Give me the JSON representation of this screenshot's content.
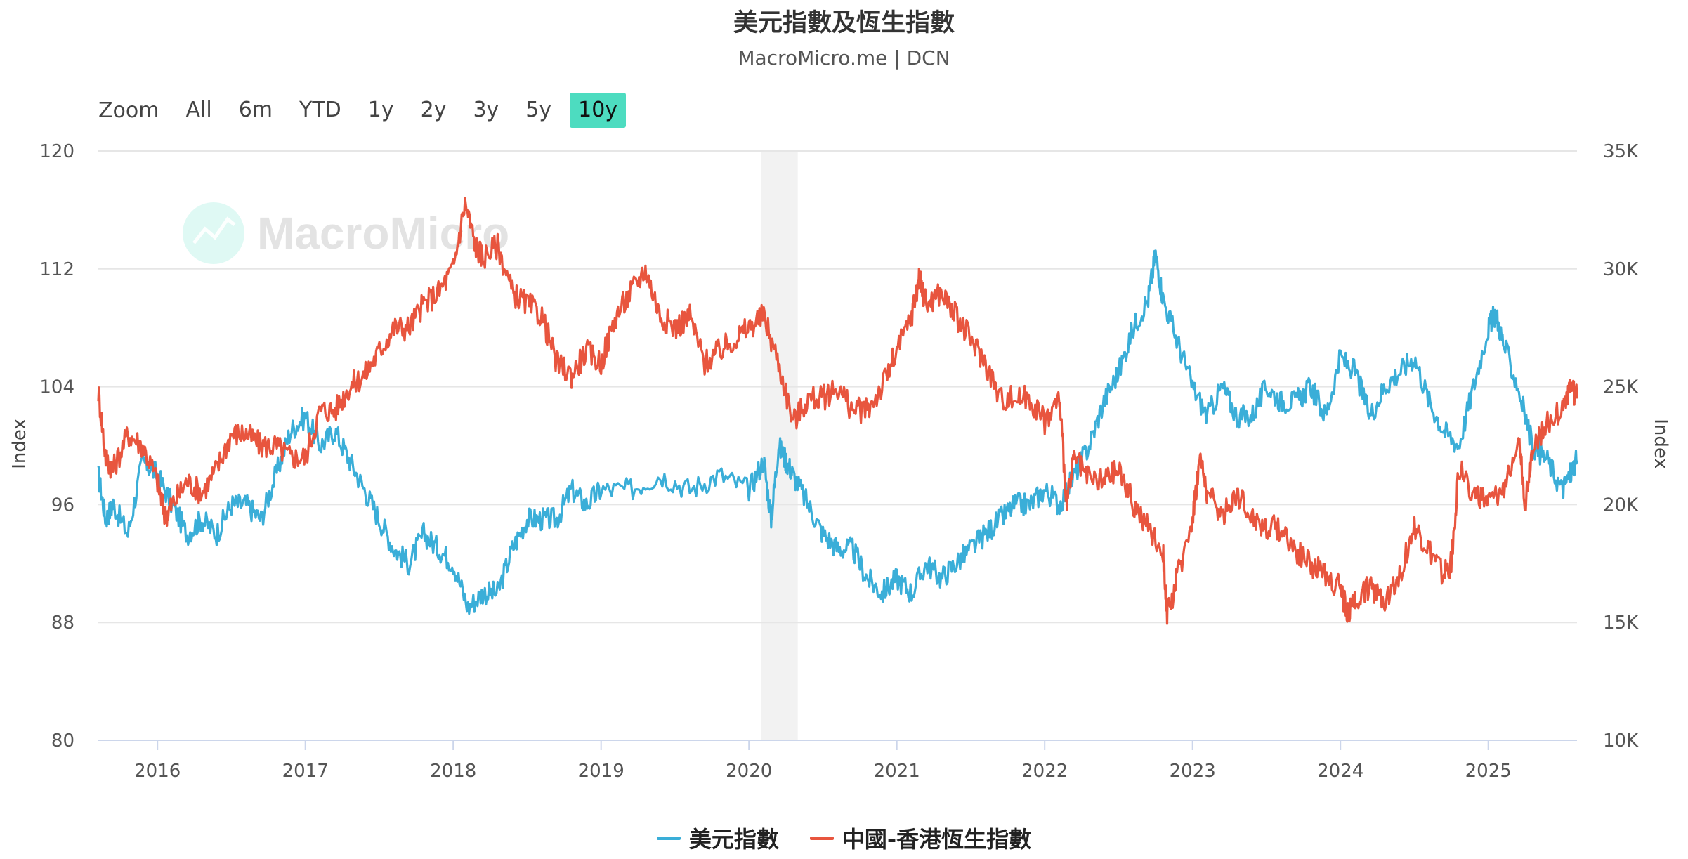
{
  "title": "美元指數及恆生指數",
  "subtitle": "MacroMicro.me | DCN",
  "watermark": "MacroMicro",
  "range_selector": {
    "zoom_label": "Zoom",
    "buttons": [
      "All",
      "6m",
      "YTD",
      "1y",
      "2y",
      "3y",
      "5y",
      "10y"
    ],
    "active": "10y"
  },
  "colors": {
    "usd": "#3aaed8",
    "hsi": "#e8553e",
    "grid": "#e6e6e6",
    "shade": "#f2f2f2",
    "active_button": "#4ddcc0",
    "watermark": "#4ddcc0"
  },
  "chart_data": {
    "type": "line",
    "x_range": [
      2015.6,
      2025.6
    ],
    "xticks": [
      2016,
      2017,
      2018,
      2019,
      2020,
      2021,
      2022,
      2023,
      2024,
      2025
    ],
    "xtick_labels": [
      "2016",
      "2017",
      "2018",
      "2019",
      "2020",
      "2021",
      "2022",
      "2023",
      "2024",
      "2025"
    ],
    "shaded_period": [
      2020.08,
      2020.33
    ],
    "y_left": {
      "label": "Index",
      "range": [
        80,
        120
      ],
      "ticks": [
        80,
        88,
        96,
        104,
        112,
        120
      ],
      "tick_labels": [
        "80",
        "88",
        "96",
        "104",
        "112",
        "120"
      ]
    },
    "y_right": {
      "label": "Index",
      "range": [
        10000,
        35000
      ],
      "ticks": [
        10000,
        15000,
        20000,
        25000,
        30000,
        35000
      ],
      "tick_labels": [
        "10K",
        "15K",
        "20K",
        "25K",
        "30K",
        "35K"
      ]
    },
    "series": [
      {
        "name": "美元指數",
        "axis": "left",
        "x": [
          2015.6,
          2015.65,
          2015.7,
          2015.8,
          2015.9,
          2016.0,
          2016.1,
          2016.2,
          2016.3,
          2016.4,
          2016.5,
          2016.6,
          2016.7,
          2016.8,
          2016.9,
          2017.0,
          2017.1,
          2017.2,
          2017.3,
          2017.4,
          2017.5,
          2017.6,
          2017.7,
          2017.8,
          2017.9,
          2018.0,
          2018.1,
          2018.2,
          2018.3,
          2018.4,
          2018.5,
          2018.6,
          2018.7,
          2018.8,
          2018.9,
          2019.0,
          2019.2,
          2019.4,
          2019.6,
          2019.8,
          2020.0,
          2020.1,
          2020.15,
          2020.2,
          2020.25,
          2020.3,
          2020.4,
          2020.5,
          2020.6,
          2020.7,
          2020.8,
          2020.9,
          2021.0,
          2021.1,
          2021.2,
          2021.3,
          2021.4,
          2021.5,
          2021.6,
          2021.7,
          2021.8,
          2021.9,
          2022.0,
          2022.1,
          2022.2,
          2022.3,
          2022.4,
          2022.5,
          2022.6,
          2022.7,
          2022.75,
          2022.8,
          2022.9,
          2023.0,
          2023.1,
          2023.2,
          2023.3,
          2023.4,
          2023.5,
          2023.6,
          2023.7,
          2023.8,
          2023.9,
          2024.0,
          2024.1,
          2024.2,
          2024.3,
          2024.4,
          2024.5,
          2024.6,
          2024.7,
          2024.8,
          2024.9,
          2025.0,
          2025.05,
          2025.1,
          2025.2,
          2025.3,
          2025.4,
          2025.5,
          2025.55,
          2025.6
        ],
        "values": [
          98,
          95,
          96,
          94,
          99,
          98,
          96,
          94,
          95,
          94,
          96,
          96,
          95,
          98,
          101,
          102,
          100,
          101,
          99,
          97,
          95,
          93,
          92,
          94,
          93,
          92,
          89,
          90,
          90,
          93,
          95,
          95,
          95,
          97,
          96,
          97,
          97,
          98,
          97,
          98,
          97,
          99,
          95,
          100,
          99,
          98,
          96,
          94,
          93,
          93,
          91,
          90,
          91,
          90,
          92,
          91,
          92,
          93,
          94,
          95,
          96,
          96,
          97,
          96,
          98,
          100,
          103,
          105,
          108,
          110,
          113,
          110,
          107,
          104,
          102,
          104,
          102,
          102,
          104,
          103,
          103,
          104,
          102,
          106,
          105,
          102,
          104,
          105,
          106,
          103,
          101,
          100,
          104,
          108,
          109,
          107,
          104,
          100,
          99,
          97,
          98,
          99
        ]
      },
      {
        "name": "中國-香港恆生指數",
        "axis": "right",
        "x": [
          2015.6,
          2015.65,
          2015.7,
          2015.8,
          2015.9,
          2016.0,
          2016.05,
          2016.1,
          2016.2,
          2016.3,
          2016.4,
          2016.5,
          2016.6,
          2016.7,
          2016.8,
          2016.9,
          2017.0,
          2017.1,
          2017.2,
          2017.3,
          2017.4,
          2017.5,
          2017.6,
          2017.7,
          2017.8,
          2017.9,
          2018.0,
          2018.08,
          2018.15,
          2018.2,
          2018.3,
          2018.4,
          2018.5,
          2018.6,
          2018.7,
          2018.8,
          2018.9,
          2019.0,
          2019.1,
          2019.2,
          2019.3,
          2019.4,
          2019.5,
          2019.6,
          2019.7,
          2019.8,
          2019.9,
          2020.0,
          2020.1,
          2020.2,
          2020.3,
          2020.4,
          2020.5,
          2020.6,
          2020.7,
          2020.8,
          2020.9,
          2021.0,
          2021.1,
          2021.15,
          2021.2,
          2021.3,
          2021.4,
          2021.5,
          2021.6,
          2021.7,
          2021.8,
          2021.9,
          2022.0,
          2022.1,
          2022.15,
          2022.2,
          2022.3,
          2022.4,
          2022.5,
          2022.6,
          2022.7,
          2022.8,
          2022.83,
          2022.9,
          2023.0,
          2023.05,
          2023.1,
          2023.2,
          2023.3,
          2023.4,
          2023.5,
          2023.6,
          2023.7,
          2023.8,
          2023.9,
          2024.0,
          2024.05,
          2024.1,
          2024.2,
          2024.3,
          2024.4,
          2024.5,
          2024.6,
          2024.7,
          2024.75,
          2024.8,
          2024.9,
          2025.0,
          2025.1,
          2025.2,
          2025.25,
          2025.3,
          2025.4,
          2025.5,
          2025.55,
          2025.6
        ],
        "values": [
          24800,
          22000,
          21500,
          23000,
          22500,
          21000,
          19500,
          20000,
          21000,
          20500,
          21500,
          23000,
          23000,
          22500,
          22500,
          22000,
          22000,
          24000,
          24000,
          25000,
          25500,
          26500,
          27500,
          27500,
          28500,
          29000,
          30000,
          32800,
          31000,
          30500,
          31000,
          29000,
          28500,
          28000,
          26000,
          25500,
          26500,
          26000,
          28000,
          29000,
          30000,
          28000,
          27500,
          28000,
          26000,
          26500,
          27000,
          27500,
          28000,
          26000,
          23500,
          24500,
          24500,
          25000,
          24000,
          24000,
          25000,
          26500,
          28000,
          29600,
          28500,
          29000,
          28000,
          27000,
          26000,
          24500,
          24500,
          24500,
          23500,
          24500,
          20000,
          22000,
          21000,
          21000,
          21500,
          20000,
          19000,
          18000,
          15300,
          17000,
          19500,
          22000,
          20500,
          19500,
          20500,
          19500,
          19000,
          19000,
          18000,
          17500,
          17000,
          16500,
          15300,
          16000,
          16500,
          16000,
          17000,
          19000,
          18000,
          17000,
          17500,
          21500,
          20500,
          20000,
          20500,
          23000,
          20000,
          22500,
          23500,
          24000,
          25000,
          24500
        ]
      }
    ]
  }
}
